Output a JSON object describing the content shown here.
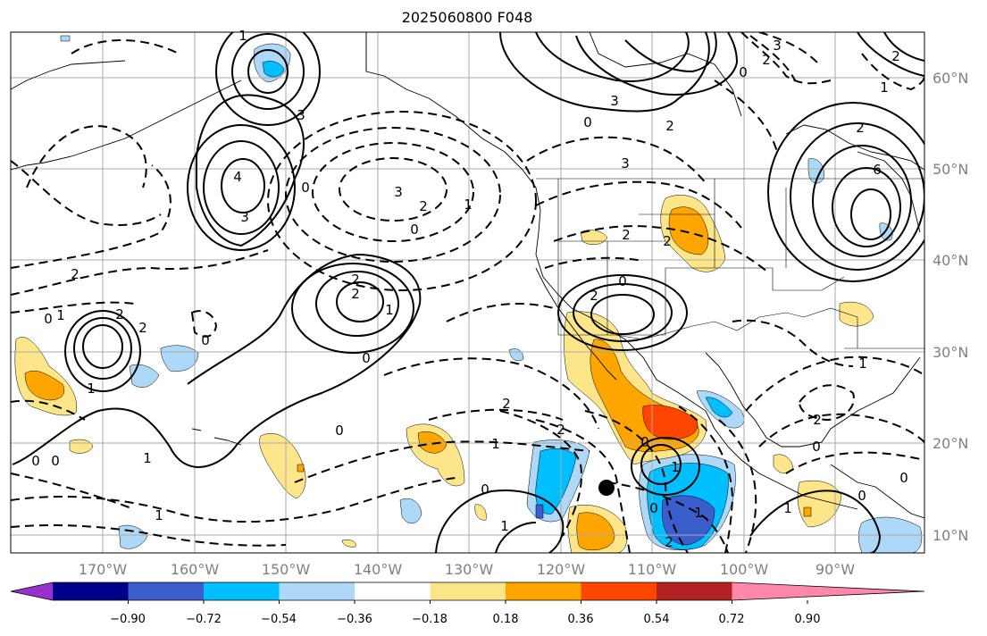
{
  "title": "2025060800 F048",
  "lon_labels": [
    "170°W",
    "160°W",
    "150°W",
    "140°W",
    "130°W",
    "120°W",
    "110°W",
    "100°W",
    "90°W"
  ],
  "lat_labels": [
    "60°N",
    "50°N",
    "40°N",
    "30°N",
    "20°N",
    "10°N"
  ],
  "colorbar": {
    "ticks": [
      "−0.90",
      "−0.72",
      "−0.54",
      "−0.36",
      "−0.18",
      "0.18",
      "0.36",
      "0.54",
      "0.72",
      "0.90"
    ],
    "colors": [
      "#9932cc",
      "#00008b",
      "#3a5fcd",
      "#00bfff",
      "#add8f7",
      "#ffffff",
      "#fde68a",
      "#ffa500",
      "#ff4500",
      "#b22222",
      "#ff88aa"
    ]
  },
  "contour_labels": [
    "3",
    "2",
    "1",
    "0",
    "3",
    "2",
    "6",
    "0",
    "3",
    "3",
    "2",
    "0",
    "4",
    "3",
    "2",
    "1",
    "0",
    "3",
    "2",
    "2",
    "0",
    "2",
    "2",
    "0",
    "1",
    "2",
    "0",
    "2",
    "1",
    "0",
    "0",
    "1",
    "2",
    "2",
    "1",
    "0",
    "1",
    "2",
    "0",
    "0",
    "1",
    "1",
    "0",
    "2",
    "1",
    "0",
    "2",
    "1",
    "1",
    "2",
    "0",
    "2",
    "0",
    "0",
    "1",
    "1"
  ],
  "marker": "center-dot"
}
